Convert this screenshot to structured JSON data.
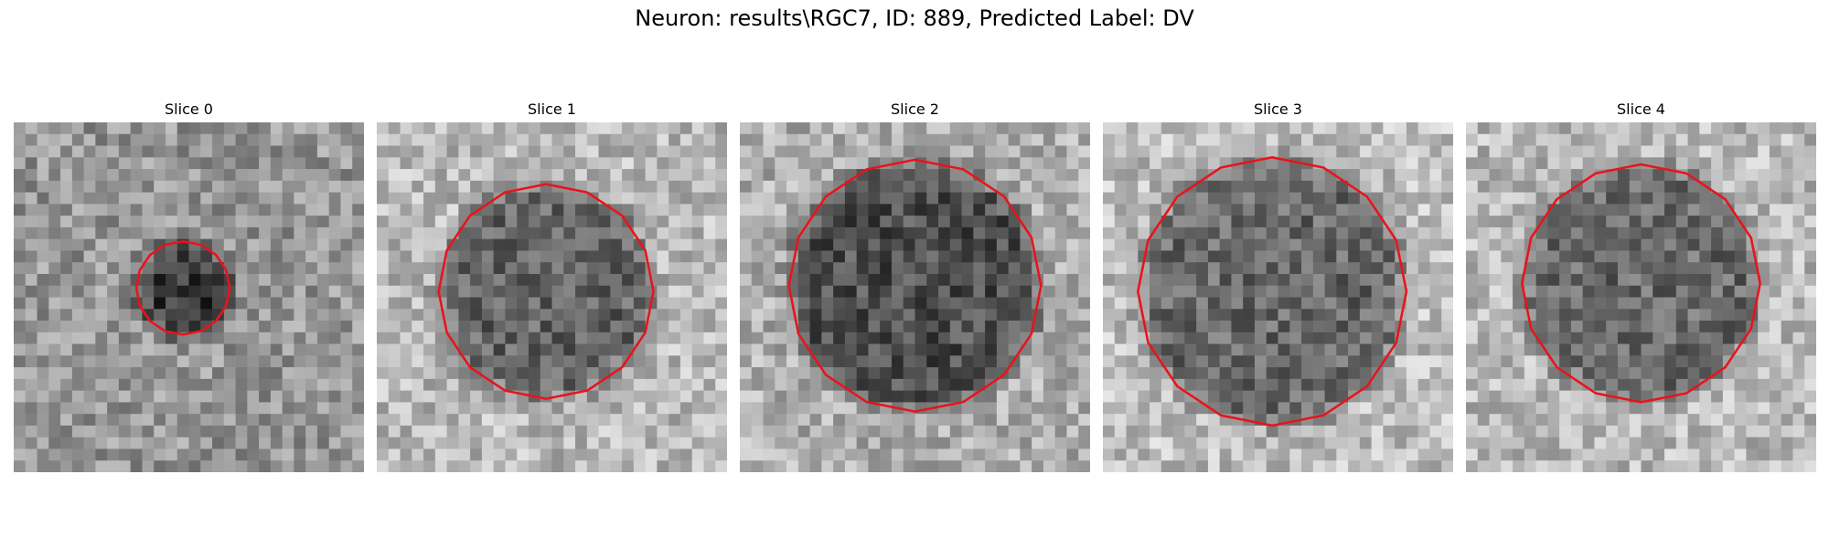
{
  "figure": {
    "title": "Neuron: results\\RGC7, ID: 889, Predicted Label: DV"
  },
  "panels": [
    {
      "title": "Slice 0"
    },
    {
      "title": "Slice 1"
    },
    {
      "title": "Slice 2"
    },
    {
      "title": "Slice 3"
    },
    {
      "title": "Slice 4"
    }
  ],
  "colors": {
    "contour": "#e8141b",
    "background": "#ffffff"
  }
}
